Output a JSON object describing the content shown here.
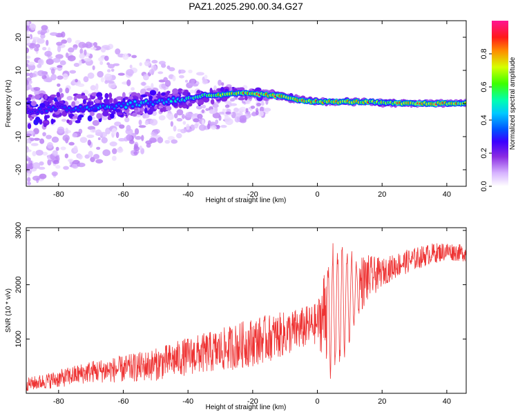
{
  "title": "PAZ1.2025.290.00.34.G27",
  "chart_data": [
    {
      "type": "heatmap",
      "name": "spectrogram",
      "xlabel": "Height of straight line (km)",
      "ylabel": "Frequency (Hz)",
      "xlim": [
        -90,
        46
      ],
      "ylim": [
        -25,
        25
      ],
      "xticks": [
        -80,
        -60,
        -40,
        -20,
        0,
        20,
        40
      ],
      "yticks": [
        -20,
        -10,
        0,
        10,
        20
      ],
      "colorbar": {
        "label": "Normalized spectral amplitude",
        "range": [
          0,
          1
        ],
        "ticks": [
          0.0,
          0.2,
          0.4,
          0.6,
          0.8
        ],
        "tick_labels": [
          "0.0",
          "0.2",
          "0.4",
          "0.6",
          "0.8"
        ],
        "colors": [
          "#ffffff",
          "#d7b4ff",
          "#8a2be2",
          "#3b00ff",
          "#0050ff",
          "#00c8ff",
          "#00ffb0",
          "#3cff00",
          "#d6ff00",
          "#ff8a00",
          "#ff1a1a",
          "#ff1493"
        ]
      },
      "ridge": {
        "x": [
          -90,
          -85,
          -80,
          -75,
          -70,
          -65,
          -60,
          -55,
          -50,
          -45,
          -40,
          -35,
          -30,
          -25,
          -20,
          -15,
          -10,
          -5,
          0,
          5,
          10,
          15,
          20,
          25,
          30,
          35,
          40,
          46
        ],
        "frequency": [
          -2,
          -2,
          -1.5,
          -1.5,
          -1,
          -1,
          -0.5,
          0,
          0.5,
          1,
          1.5,
          2.5,
          2.5,
          3,
          3,
          2.5,
          2,
          1,
          0.5,
          0.5,
          0.5,
          0.5,
          0.2,
          0,
          0,
          0,
          0,
          0
        ],
        "amplitude": [
          0.3,
          0.35,
          0.35,
          0.4,
          0.4,
          0.45,
          0.45,
          0.5,
          0.45,
          0.5,
          0.55,
          0.7,
          0.75,
          0.8,
          0.85,
          0.9,
          0.8,
          0.85,
          0.8,
          0.85,
          0.8,
          0.85,
          0.7,
          0.85,
          0.9,
          0.9,
          0.85,
          0.85
        ]
      }
    },
    {
      "type": "line",
      "name": "snr",
      "xlabel": "Height of straight line (km)",
      "ylabel": "SNR (10 * v/v)",
      "xlim": [
        -90,
        46
      ],
      "ylim": [
        0,
        3050
      ],
      "xticks": [
        -80,
        -60,
        -40,
        -20,
        0,
        20,
        40
      ],
      "yticks": [
        1000,
        2000,
        3000
      ],
      "color": "#ee3333",
      "trend": {
        "x": [
          -90,
          -80,
          -70,
          -60,
          -50,
          -40,
          -30,
          -20,
          -10,
          0,
          4,
          10,
          15,
          20,
          25,
          30,
          35,
          40,
          46
        ],
        "y": [
          150,
          250,
          380,
          420,
          500,
          650,
          750,
          900,
          1050,
          1250,
          1500,
          1800,
          2050,
          2200,
          2350,
          2450,
          2550,
          2600,
          2560
        ]
      },
      "noise_amplitude": {
        "x": [
          -90,
          -60,
          -40,
          -20,
          0,
          4,
          8,
          12,
          20,
          46
        ],
        "y": [
          120,
          250,
          350,
          450,
          380,
          1300,
          1200,
          600,
          250,
          150
        ]
      }
    }
  ]
}
